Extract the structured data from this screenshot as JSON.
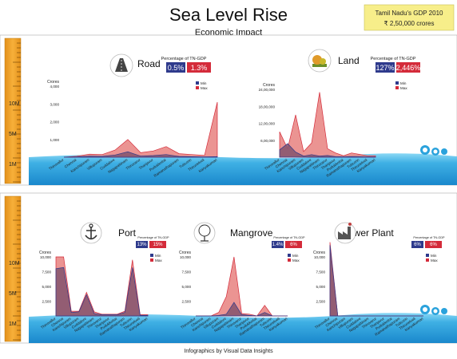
{
  "header": {
    "title": "Sea Level Rise",
    "subtitle": "Economic Impact",
    "gdp_label": "Tamil Nadu's GDP 2010",
    "gdp_value": "₹ 2,50,000 crores"
  },
  "footer": {
    "credit": "Infographics by Visual Data Insights"
  },
  "ruler_labels": [
    "10M",
    "5M",
    "1M"
  ],
  "legend": {
    "min": "Min",
    "max": "Max"
  },
  "pct_label": "Percentage of TN-GDP",
  "y_unit": "Crores",
  "colors": {
    "min": "#2e3a8c",
    "max": "#d42b3a",
    "area_max": "#e8817f",
    "area_min": "#8a5670",
    "ruler": "#f0a020",
    "sea_top": "#7fd0f0",
    "sea_bottom": "#1c8fd0",
    "badge_min": "#2e3a8c",
    "badge_max": "#d42b3a"
  },
  "districts": [
    "Thiruvallur",
    "Chennai",
    "Kanchipuram",
    "Villupuram",
    "Cuddalore",
    "Nagapattinam",
    "Thiruvarur",
    "Thanjavur",
    "Pudukkottai",
    "Ramanathapuram",
    "Tuticorin",
    "Thirunelveli",
    "Kanyakumari"
  ],
  "chart_data": [
    {
      "name": "Road",
      "icon": "road-icon",
      "type": "area",
      "pct_min": "0.5%",
      "pct_max": "1.3%",
      "yticks": [
        "4,000",
        "3,000",
        "2,000",
        "1,000"
      ],
      "ylim": [
        0,
        4000
      ],
      "series": [
        {
          "name": "Min",
          "values": [
            0,
            20,
            50,
            40,
            120,
            300,
            60,
            90,
            150,
            40,
            30,
            20,
            30
          ]
        },
        {
          "name": "Max",
          "values": [
            0,
            50,
            170,
            150,
            400,
            1000,
            250,
            350,
            600,
            200,
            150,
            100,
            3100
          ]
        }
      ]
    },
    {
      "name": "Land",
      "icon": "land-icon",
      "type": "area",
      "pct_min": "127%",
      "pct_max": "2,446%",
      "yticks": [
        "24,00,000",
        "18,00,000",
        "12,00,000",
        "6,00,000"
      ],
      "ylim": [
        0,
        2400000
      ],
      "series": [
        {
          "name": "Min",
          "values": [
            260000,
            480000,
            180000,
            40000,
            90000,
            40000,
            60000,
            20000,
            10000,
            20000,
            15000,
            10000,
            10000
          ]
        },
        {
          "name": "Max",
          "values": [
            900000,
            300000,
            1500000,
            200000,
            500000,
            2300000,
            300000,
            150000,
            50000,
            150000,
            100000,
            50000,
            50000
          ]
        }
      ]
    },
    {
      "name": "Port",
      "icon": "anchor-icon",
      "type": "area",
      "pct_min": "13%",
      "pct_max": "15%",
      "yticks": [
        "10,000",
        "7,500",
        "5,000",
        "2,500"
      ],
      "ylim": [
        0,
        10000
      ],
      "series": [
        {
          "name": "Min",
          "values": [
            8000,
            8200,
            600,
            700,
            3600,
            400,
            200,
            200,
            200,
            600,
            8200,
            100,
            100
          ]
        },
        {
          "name": "Max",
          "values": [
            10000,
            10000,
            800,
            800,
            4000,
            700,
            300,
            300,
            300,
            800,
            9500,
            200,
            200
          ]
        }
      ]
    },
    {
      "name": "Mangrove",
      "icon": "tree-icon",
      "type": "area",
      "pct_min": "1.4%",
      "pct_max": "6%",
      "yticks": [
        "10,000",
        "7,500",
        "5,000",
        "2,500"
      ],
      "ylim": [
        0,
        10000
      ],
      "series": [
        {
          "name": "Min",
          "values": [
            0,
            0,
            0,
            100,
            300,
            2300,
            200,
            100,
            0,
            600,
            0,
            0,
            0
          ]
        },
        {
          "name": "Max",
          "values": [
            0,
            0,
            0,
            600,
            3300,
            10000,
            400,
            300,
            0,
            1800,
            0,
            0,
            0
          ]
        }
      ]
    },
    {
      "name": "Power Plant",
      "icon": "factory-icon",
      "type": "area",
      "pct_min": "6%",
      "pct_max": "6%",
      "yticks": [
        "10,000",
        "7,500",
        "5,000",
        "2,500"
      ],
      "ylim": [
        0,
        10000
      ],
      "series": [
        {
          "name": "Min",
          "values": [
            12000,
            0,
            0,
            0,
            0,
            0,
            0,
            0,
            0,
            0,
            0,
            0,
            0
          ]
        },
        {
          "name": "Max",
          "values": [
            12500,
            0,
            0,
            0,
            0,
            0,
            0,
            0,
            0,
            0,
            0,
            0,
            0
          ]
        }
      ]
    }
  ]
}
